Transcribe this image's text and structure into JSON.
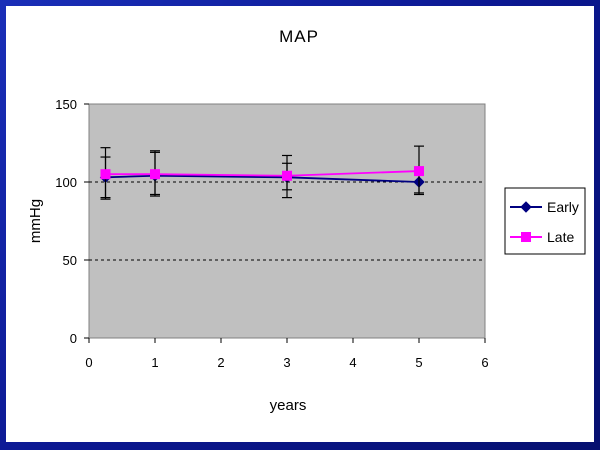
{
  "chart_data": {
    "type": "line",
    "title": "MAP",
    "xlabel": "years",
    "ylabel": "mmHg",
    "xlim": [
      0,
      6
    ],
    "ylim": [
      0,
      150
    ],
    "xticks": [
      0,
      1,
      2,
      3,
      4,
      5,
      6
    ],
    "yticks": [
      0,
      50,
      100,
      150
    ],
    "grid": "horizontal dashed at 50 and 100",
    "legend_position": "right",
    "series": [
      {
        "name": "Early",
        "color": "#000080",
        "marker": "diamond",
        "x": [
          0.25,
          1,
          3,
          5
        ],
        "y": [
          103,
          104,
          103,
          100
        ],
        "err_low": [
          89,
          91,
          90,
          92
        ],
        "err_high": [
          116,
          119,
          112,
          100
        ]
      },
      {
        "name": "Late",
        "color": "#ff00ff",
        "marker": "square",
        "x": [
          0.25,
          1,
          3,
          5
        ],
        "y": [
          105,
          105,
          104,
          107
        ],
        "err_low": [
          90,
          92,
          95,
          93
        ],
        "err_high": [
          122,
          120,
          117,
          123
        ]
      }
    ]
  }
}
